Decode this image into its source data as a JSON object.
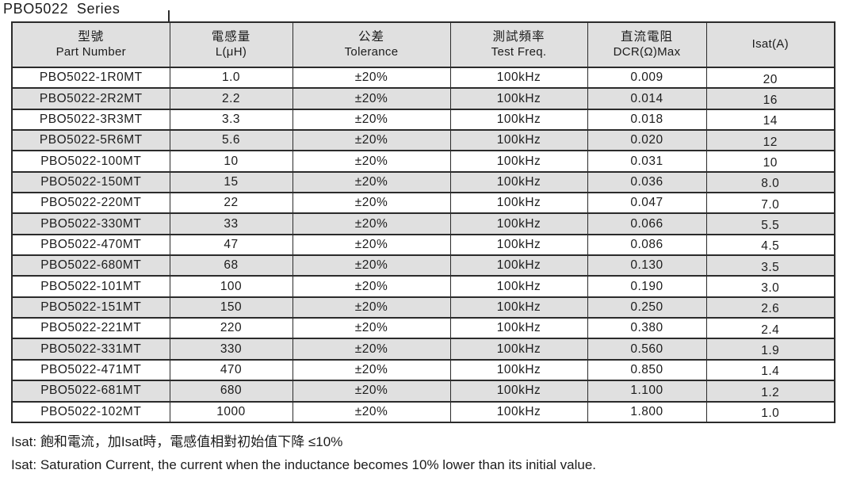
{
  "title": "PBO5022 Series",
  "table": {
    "columns": [
      {
        "zh": "型號",
        "en": "Part Number"
      },
      {
        "zh": "電感量",
        "en": "L(μH)"
      },
      {
        "zh": "公差",
        "en": "Tolerance"
      },
      {
        "zh": "測試頻率",
        "en": "Test Freq."
      },
      {
        "zh": "直流電阻",
        "en": "DCR(Ω)Max"
      },
      {
        "zh": "Isat(A)",
        "en": ""
      }
    ],
    "rows": [
      [
        "PBO5022-1R0MT",
        "1.0",
        "±20%",
        "100kHz",
        "0.009",
        "20"
      ],
      [
        "PBO5022-2R2MT",
        "2.2",
        "±20%",
        "100kHz",
        "0.014",
        "16"
      ],
      [
        "PBO5022-3R3MT",
        "3.3",
        "±20%",
        "100kHz",
        "0.018",
        "14"
      ],
      [
        "PBO5022-5R6MT",
        "5.6",
        "±20%",
        "100kHz",
        "0.020",
        "12"
      ],
      [
        "PBO5022-100MT",
        "10",
        "±20%",
        "100kHz",
        "0.031",
        "10"
      ],
      [
        "PBO5022-150MT",
        "15",
        "±20%",
        "100kHz",
        "0.036",
        "8.0"
      ],
      [
        "PBO5022-220MT",
        "22",
        "±20%",
        "100kHz",
        "0.047",
        "7.0"
      ],
      [
        "PBO5022-330MT",
        "33",
        "±20%",
        "100kHz",
        "0.066",
        "5.5"
      ],
      [
        "PBO5022-470MT",
        "47",
        "±20%",
        "100kHz",
        "0.086",
        "4.5"
      ],
      [
        "PBO5022-680MT",
        "68",
        "±20%",
        "100kHz",
        "0.130",
        "3.5"
      ],
      [
        "PBO5022-101MT",
        "100",
        "±20%",
        "100kHz",
        "0.190",
        "3.0"
      ],
      [
        "PBO5022-151MT",
        "150",
        "±20%",
        "100kHz",
        "0.250",
        "2.6"
      ],
      [
        "PBO5022-221MT",
        "220",
        "±20%",
        "100kHz",
        "0.380",
        "2.4"
      ],
      [
        "PBO5022-331MT",
        "330",
        "±20%",
        "100kHz",
        "0.560",
        "1.9"
      ],
      [
        "PBO5022-471MT",
        "470",
        "±20%",
        "100kHz",
        "0.850",
        "1.4"
      ],
      [
        "PBO5022-681MT",
        "680",
        "±20%",
        "100kHz",
        "1.100",
        "1.2"
      ],
      [
        "PBO5022-102MT",
        "1000",
        "±20%",
        "100kHz",
        "1.800",
        "1.0"
      ]
    ],
    "column_keys": [
      "part-number",
      "inductance",
      "tolerance",
      "test-freq",
      "dcr",
      "isat"
    ]
  },
  "notes": {
    "line1": "Isat: 飽和電流，加Isat時，電感值相對初始值下降 ≤10%",
    "line2": "Isat: Saturation Current, the current when the inductance becomes 10% lower than its initial value."
  },
  "colors": {
    "row_stripe": "#e0e0e0",
    "border": "#2b2b2b",
    "text": "#1c1c1c",
    "background": "#ffffff"
  }
}
